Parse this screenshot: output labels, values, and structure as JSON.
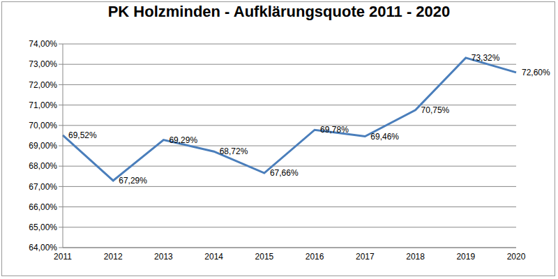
{
  "chart_data": {
    "type": "line",
    "title": "PK Holzminden - Aufklärungsquote 2011 - 2020",
    "categories": [
      "2011",
      "2012",
      "2013",
      "2014",
      "2015",
      "2016",
      "2017",
      "2018",
      "2019",
      "2020"
    ],
    "values": [
      69.52,
      67.29,
      69.29,
      68.72,
      67.66,
      69.78,
      69.46,
      70.75,
      73.32,
      72.6
    ],
    "value_labels": [
      "69,52%",
      "67,29%",
      "69,29%",
      "68,72%",
      "67,66%",
      "69,78%",
      "69,46%",
      "70,75%",
      "73,32%",
      "72,60%"
    ],
    "color": "#4a7ebb",
    "ylim": [
      64,
      74
    ],
    "yticks": [
      {
        "value": 64,
        "label": "64,00%"
      },
      {
        "value": 65,
        "label": "65,00%"
      },
      {
        "value": 66,
        "label": "66,00%"
      },
      {
        "value": 67,
        "label": "67,00%"
      },
      {
        "value": 68,
        "label": "68,00%"
      },
      {
        "value": 69,
        "label": "69,00%"
      },
      {
        "value": 70,
        "label": "70,00%"
      },
      {
        "value": 71,
        "label": "71,00%"
      },
      {
        "value": 72,
        "label": "72,00%"
      },
      {
        "value": 73,
        "label": "73,00%"
      },
      {
        "value": 74,
        "label": "74,00%"
      }
    ],
    "grid": true,
    "data_labels": true
  }
}
